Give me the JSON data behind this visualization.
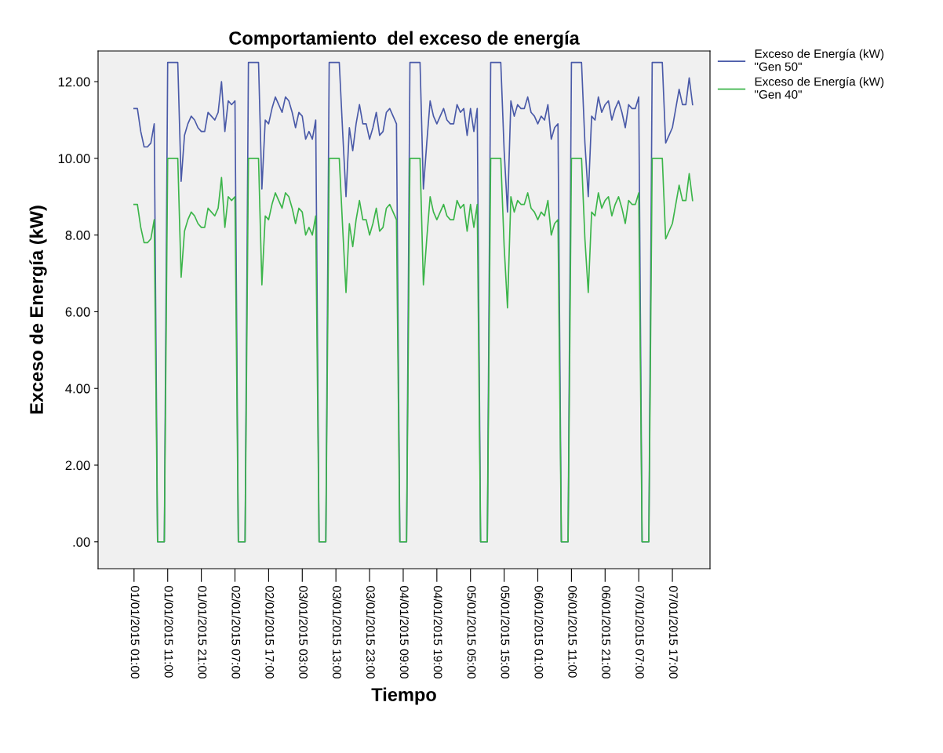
{
  "chart_data": {
    "type": "line",
    "title": "Comportamiento  del exceso de energía",
    "xlabel": "Tiempo",
    "ylabel": "Exceso de Energía (kW)",
    "categories": [
      "01/01/2015 01:00",
      null,
      null,
      null,
      null,
      null,
      null,
      null,
      null,
      null,
      "01/01/2015 11:00",
      null,
      null,
      null,
      null,
      null,
      null,
      null,
      null,
      null,
      "01/01/2015 21:00",
      null,
      null,
      null,
      null,
      null,
      null,
      null,
      null,
      null,
      "02/01/2015 07:00",
      null,
      null,
      null,
      null,
      null,
      null,
      null,
      null,
      null,
      "02/01/2015 17:00",
      null,
      null,
      null,
      null,
      null,
      null,
      null,
      null,
      null,
      "03/01/2015 03:00",
      null,
      null,
      null,
      null,
      null,
      null,
      null,
      null,
      null,
      "03/01/2015 13:00",
      null,
      null,
      null,
      null,
      null,
      null,
      null,
      null,
      null,
      "03/01/2015 23:00",
      null,
      null,
      null,
      null,
      null,
      null,
      null,
      null,
      null,
      "04/01/2015 09:00",
      null,
      null,
      null,
      null,
      null,
      null,
      null,
      null,
      null,
      "04/01/2015 19:00",
      null,
      null,
      null,
      null,
      null,
      null,
      null,
      null,
      null,
      "05/01/2015 05:00",
      null,
      null,
      null,
      null,
      null,
      null,
      null,
      null,
      null,
      "05/01/2015 15:00",
      null,
      null,
      null,
      null,
      null,
      null,
      null,
      null,
      null,
      "06/01/2015 01:00",
      null,
      null,
      null,
      null,
      null,
      null,
      null,
      null,
      null,
      "06/01/2015 11:00",
      null,
      null,
      null,
      null,
      null,
      null,
      null,
      null,
      null,
      "06/01/2015 21:00",
      null,
      null,
      null,
      null,
      null,
      null,
      null,
      null,
      null,
      "07/01/2015 07:00",
      null,
      null,
      null,
      null,
      null,
      null,
      null,
      null,
      null,
      "07/01/2015 17:00",
      null,
      null,
      null,
      null,
      null,
      null
    ],
    "series": [
      {
        "name": "Exceso de Energía (kW)\n\"Gen 50\"",
        "color": "#4a5aa8",
        "values": [
          11.3,
          11.3,
          10.7,
          10.3,
          10.3,
          10.4,
          10.9,
          0,
          0,
          0,
          12.5,
          12.5,
          12.5,
          12.5,
          9.4,
          10.6,
          10.9,
          11.1,
          11.0,
          10.8,
          10.7,
          10.7,
          11.2,
          11.1,
          11.0,
          11.2,
          12.0,
          10.7,
          11.5,
          11.4,
          11.5,
          0,
          0,
          0,
          12.5,
          12.5,
          12.5,
          12.5,
          9.2,
          11.0,
          10.9,
          11.3,
          11.6,
          11.4,
          11.2,
          11.6,
          11.5,
          11.2,
          10.8,
          11.2,
          11.1,
          10.5,
          10.7,
          10.5,
          11.0,
          0,
          0,
          0,
          12.5,
          12.5,
          12.5,
          12.5,
          10.7,
          9.0,
          10.8,
          10.2,
          10.9,
          11.4,
          10.9,
          10.9,
          10.5,
          10.8,
          11.2,
          10.6,
          10.7,
          11.2,
          11.3,
          11.1,
          10.9,
          0,
          0,
          0,
          12.5,
          12.5,
          12.5,
          12.5,
          9.2,
          10.4,
          11.5,
          11.1,
          10.9,
          11.1,
          11.3,
          11.0,
          10.9,
          10.9,
          11.4,
          11.2,
          11.3,
          10.6,
          11.3,
          10.7,
          11.3,
          0,
          0,
          0,
          12.5,
          12.5,
          12.5,
          12.5,
          10.2,
          8.6,
          11.5,
          11.1,
          11.4,
          11.3,
          11.3,
          11.6,
          11.2,
          11.1,
          10.9,
          11.1,
          11.0,
          11.4,
          10.5,
          10.8,
          10.9,
          0,
          0,
          0,
          12.5,
          12.5,
          12.5,
          12.5,
          10.4,
          9.0,
          11.1,
          11.0,
          11.6,
          11.2,
          11.4,
          11.5,
          11.0,
          11.3,
          11.5,
          11.2,
          10.8,
          11.4,
          11.3,
          11.3,
          11.6,
          0,
          0,
          0,
          12.5,
          12.5,
          12.5,
          12.5,
          10.4,
          10.6,
          10.8,
          11.3,
          11.8,
          11.4,
          11.4,
          12.1,
          11.4
        ]
      },
      {
        "name": "Exceso de Energía (kW)\n\"Gen 40\"",
        "color": "#3cb54a",
        "values": [
          8.8,
          8.8,
          8.2,
          7.8,
          7.8,
          7.9,
          8.4,
          0,
          0,
          0,
          10,
          10,
          10,
          10,
          6.9,
          8.1,
          8.4,
          8.6,
          8.5,
          8.3,
          8.2,
          8.2,
          8.7,
          8.6,
          8.5,
          8.7,
          9.5,
          8.2,
          9.0,
          8.9,
          9.0,
          0,
          0,
          0,
          10,
          10,
          10,
          10,
          6.7,
          8.5,
          8.4,
          8.8,
          9.1,
          8.9,
          8.7,
          9.1,
          9.0,
          8.7,
          8.3,
          8.7,
          8.6,
          8.0,
          8.2,
          8.0,
          8.5,
          0,
          0,
          0,
          10,
          10,
          10,
          10,
          8.2,
          6.5,
          8.3,
          7.7,
          8.4,
          8.9,
          8.4,
          8.4,
          8.0,
          8.3,
          8.7,
          8.1,
          8.2,
          8.7,
          8.8,
          8.6,
          8.4,
          0,
          0,
          0,
          10,
          10,
          10,
          10,
          6.7,
          7.9,
          9.0,
          8.6,
          8.4,
          8.6,
          8.8,
          8.5,
          8.4,
          8.4,
          8.9,
          8.7,
          8.8,
          8.1,
          8.8,
          8.2,
          8.8,
          0,
          0,
          0,
          10,
          10,
          10,
          10,
          7.7,
          6.1,
          9.0,
          8.6,
          8.9,
          8.8,
          8.8,
          9.1,
          8.7,
          8.6,
          8.4,
          8.6,
          8.5,
          8.9,
          8.0,
          8.3,
          8.4,
          0,
          0,
          0,
          10,
          10,
          10,
          10,
          7.9,
          6.5,
          8.6,
          8.5,
          9.1,
          8.7,
          8.9,
          9.0,
          8.5,
          8.8,
          9.0,
          8.7,
          8.3,
          8.9,
          8.8,
          8.8,
          9.1,
          0,
          0,
          0,
          10,
          10,
          10,
          10,
          7.9,
          8.1,
          8.3,
          8.8,
          9.3,
          8.9,
          8.9,
          9.6,
          8.9
        ]
      }
    ],
    "ylim": [
      -0.7,
      12.8
    ],
    "yticks": [
      {
        "value": 0,
        "label": ".00"
      },
      {
        "value": 2,
        "label": "2.00"
      },
      {
        "value": 4,
        "label": "4.00"
      },
      {
        "value": 6,
        "label": "6.00"
      },
      {
        "value": 8,
        "label": "8.00"
      },
      {
        "value": 10,
        "label": "10.00"
      },
      {
        "value": 12,
        "label": "12.00"
      }
    ],
    "grid": false,
    "legend": "top right",
    "marker": "none",
    "line_style": "solid"
  }
}
